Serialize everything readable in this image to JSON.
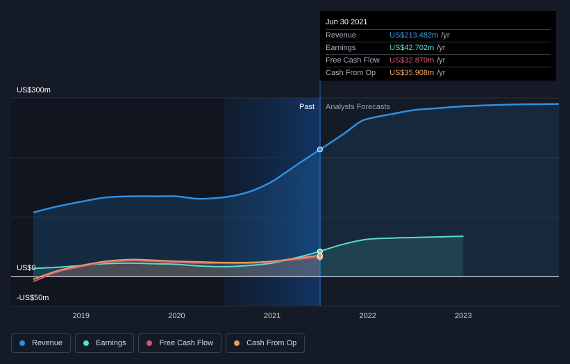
{
  "tooltip": {
    "date": "Jun 30 2021",
    "rows": [
      {
        "label": "Revenue",
        "value": "US$213.482m",
        "unit": "/yr",
        "color": "#3d9be9"
      },
      {
        "label": "Earnings",
        "value": "US$42.702m",
        "unit": "/yr",
        "color": "#5fe3cf"
      },
      {
        "label": "Free Cash Flow",
        "value": "US$32.870m",
        "unit": "/yr",
        "color": "#d9577f"
      },
      {
        "label": "Cash From Op",
        "value": "US$35.908m",
        "unit": "/yr",
        "color": "#e8a468"
      }
    ]
  },
  "legend": [
    {
      "label": "Revenue",
      "color": "#2f8fe0"
    },
    {
      "label": "Earnings",
      "color": "#58dcc8"
    },
    {
      "label": "Free Cash Flow",
      "color": "#d4547c"
    },
    {
      "label": "Cash From Op",
      "color": "#e39e5e"
    }
  ],
  "chart_data": {
    "type": "line",
    "yticks": [
      "US$300m",
      "US$0",
      "-US$50m"
    ],
    "ylim": [
      -50,
      300
    ],
    "xticks": [
      "2019",
      "2020",
      "2021",
      "2022",
      "2023"
    ],
    "xlim": [
      2018.5,
      2024.0
    ],
    "past_label": "Past",
    "forecast_label": "Analysts Forecasts",
    "divider_x": 2021.5,
    "highlight_start_x": 2020.5,
    "series": [
      {
        "name": "Revenue",
        "color": "#2f8fe0",
        "x": [
          2018.5,
          2018.75,
          2019.0,
          2019.25,
          2019.5,
          2019.75,
          2020.0,
          2020.2,
          2020.4,
          2020.6,
          2020.8,
          2021.0,
          2021.25,
          2021.5
        ],
        "y": [
          108,
          118,
          126,
          133,
          135,
          135,
          135,
          131,
          132,
          136,
          145,
          160,
          187,
          213.5
        ],
        "forecast_x": [
          2021.5,
          2021.75,
          2021.9,
          2022.0,
          2022.25,
          2022.5,
          2022.75,
          2023.0,
          2023.5,
          2024.0
        ],
        "forecast_y": [
          213.5,
          240,
          258,
          265,
          273,
          280,
          283,
          286,
          289,
          290
        ]
      },
      {
        "name": "Earnings",
        "color": "#58dcc8",
        "x": [
          2018.5,
          2018.75,
          2019.0,
          2019.25,
          2019.5,
          2019.75,
          2020.0,
          2020.25,
          2020.5,
          2020.75,
          2021.0,
          2021.25,
          2021.5
        ],
        "y": [
          14,
          16,
          19,
          22,
          23,
          22,
          21,
          18,
          17,
          19,
          23,
          32,
          42.7
        ],
        "forecast_x": [
          2021.5,
          2021.75,
          2022.0,
          2022.25,
          2022.5,
          2022.75,
          2023.0
        ],
        "forecast_y": [
          42.7,
          55,
          63,
          65,
          66,
          67,
          68
        ]
      },
      {
        "name": "Free Cash Flow",
        "color": "#d4547c",
        "x": [
          2018.5,
          2018.75,
          2019.0,
          2019.25,
          2019.5,
          2019.75,
          2020.0,
          2020.25,
          2020.5,
          2020.75,
          2021.0,
          2021.25,
          2021.5
        ],
        "y": [
          -8,
          8,
          17,
          24,
          27,
          26,
          24,
          23,
          23,
          23,
          25,
          29,
          32.9
        ]
      },
      {
        "name": "Cash From Op",
        "color": "#e39e5e",
        "x": [
          2018.5,
          2018.75,
          2019.0,
          2019.25,
          2019.5,
          2019.75,
          2020.0,
          2020.25,
          2020.5,
          2020.75,
          2021.0,
          2021.25,
          2021.5
        ],
        "y": [
          -4,
          10,
          19,
          26,
          29,
          28,
          26,
          25,
          24,
          24,
          26,
          31,
          35.9
        ]
      }
    ]
  }
}
